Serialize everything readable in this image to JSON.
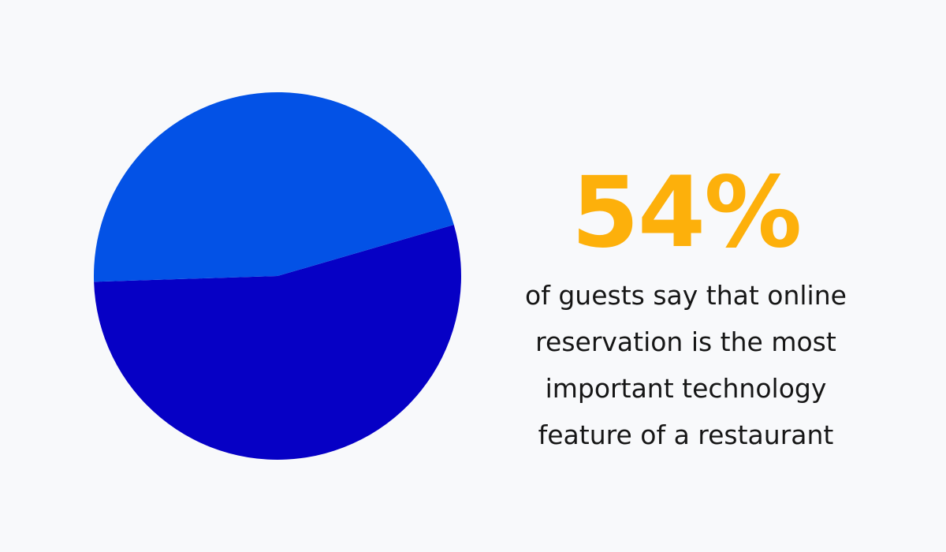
{
  "chart_data": {
    "type": "pie",
    "slices": [
      {
        "value": 54,
        "color": "#0600c5"
      },
      {
        "value": 46,
        "color": "#0352e6"
      }
    ]
  },
  "stat": {
    "value": "54%",
    "color": "#fdb00b",
    "caption_lines": [
      "of guests say that online",
      "reservation is the most",
      "important technology",
      "feature of a restaurant"
    ]
  }
}
